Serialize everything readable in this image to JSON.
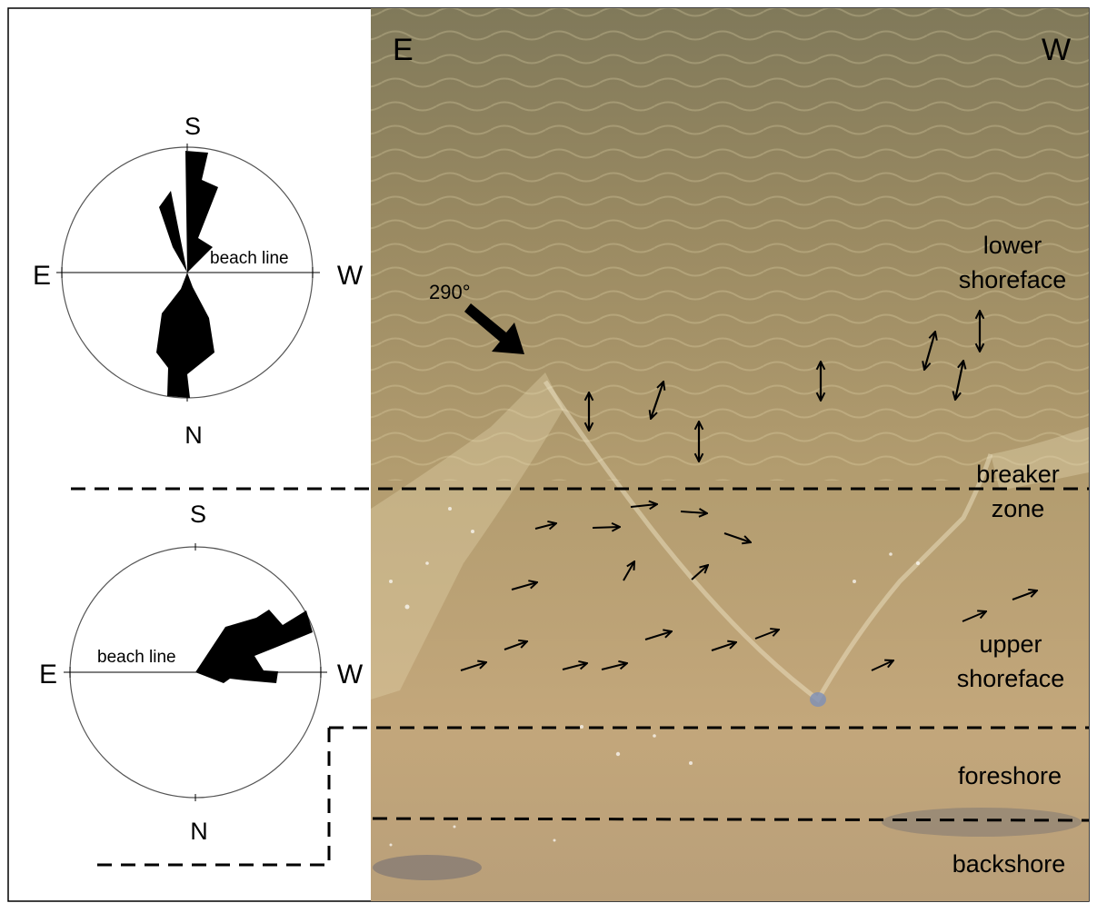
{
  "photo_labels": {
    "east": "E",
    "west": "W"
  },
  "upper_rose": {
    "label_top": "S",
    "label_bottom": "N",
    "label_left": "E",
    "label_right": "W",
    "beach_line": "beach line"
  },
  "lower_rose": {
    "label_top": "S",
    "label_bottom": "N",
    "label_left": "E",
    "label_right": "W",
    "beach_line": "beach line"
  },
  "wave_direction": "290°",
  "zones": {
    "lower_shoreface_1": "lower",
    "lower_shoreface_2": "shoreface",
    "breaker_1": "breaker",
    "breaker_2": "zone",
    "upper_shoreface_1": "upper",
    "upper_shoreface_2": "shoreface",
    "foreshore": "foreshore",
    "backshore": "backshore"
  },
  "colors": {
    "photo_dark_water": "#7f7a5a",
    "photo_mid_water": "#a8946a",
    "photo_sand": "#c4a77c",
    "photo_shadow": "#6b6a6c",
    "ink": "#000000"
  },
  "symbols": {
    "bidirectional_arrows": "double-headed-arrow-icons",
    "flow_arrows": "arrow-icons"
  }
}
